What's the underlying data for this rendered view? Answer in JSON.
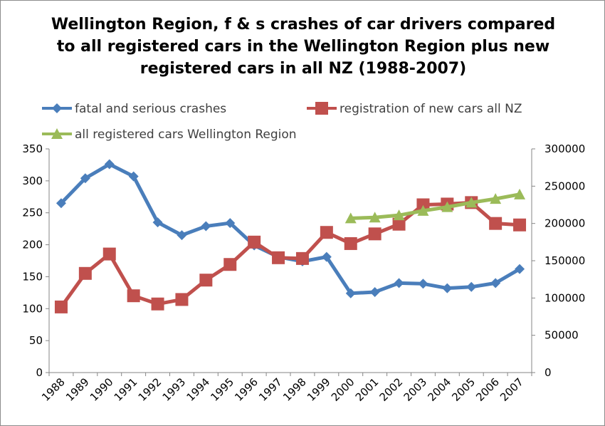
{
  "chart_data": {
    "type": "line",
    "title_lines": [
      "Wellington Region, f & s crashes of car drivers compared",
      "to all registered cars in the Wellington Region plus new",
      "registered cars in all NZ (1988-2007)"
    ],
    "categories": [
      "1988",
      "1989",
      "1990",
      "1991",
      "1992",
      "1993",
      "1994",
      "1995",
      "1996",
      "1997",
      "1998",
      "1999",
      "2000",
      "2001",
      "2002",
      "2003",
      "2004",
      "2005",
      "2006",
      "2007"
    ],
    "y_left": {
      "min": 0,
      "max": 350,
      "step": 50,
      "ticks": [
        "0",
        "50",
        "100",
        "150",
        "200",
        "250",
        "300",
        "350"
      ]
    },
    "y_right": {
      "min": 0,
      "max": 300000,
      "step": 50000,
      "ticks": [
        "0",
        "50000",
        "100000",
        "150000",
        "200000",
        "250000",
        "300000"
      ]
    },
    "legend_position": "top",
    "grid": false,
    "series": [
      {
        "name": "fatal and serious crashes",
        "axis": "left",
        "color": "#4a7ebb",
        "marker": "diamond",
        "values": [
          265,
          304,
          326,
          307,
          235,
          215,
          229,
          234,
          199,
          181,
          174,
          181,
          124,
          126,
          140,
          139,
          132,
          134,
          140,
          162
        ]
      },
      {
        "name": "registration of new cars all NZ",
        "axis": "right",
        "color": "#c0504d",
        "marker": "square",
        "values": [
          88000,
          133000,
          159000,
          103000,
          92000,
          98000,
          124000,
          145000,
          175000,
          154000,
          153000,
          188000,
          173000,
          186000,
          199000,
          225000,
          226000,
          228000,
          200000,
          198000
        ]
      },
      {
        "name": "all registered cars Wellington Region",
        "axis": "right",
        "color": "#9bbb59",
        "marker": "triangle",
        "values": [
          null,
          null,
          null,
          null,
          null,
          null,
          null,
          null,
          null,
          null,
          null,
          null,
          207000,
          208000,
          211000,
          217000,
          222000,
          228000,
          233000,
          239000
        ]
      }
    ]
  }
}
